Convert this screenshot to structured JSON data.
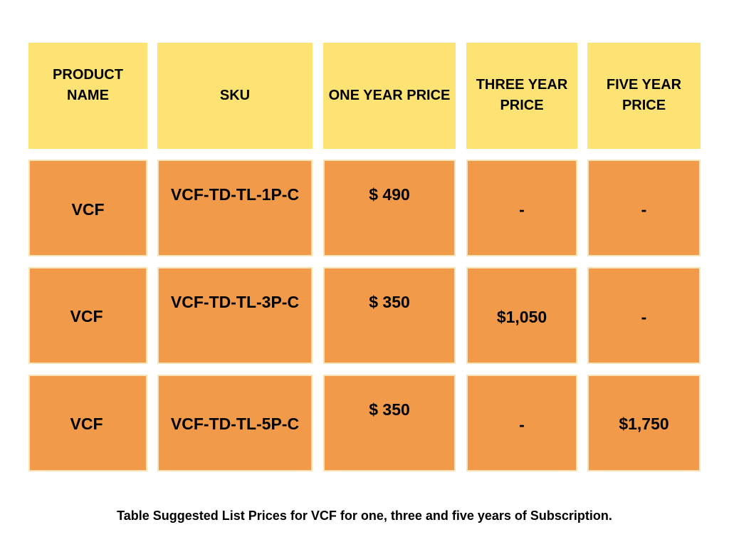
{
  "table": {
    "headers": [
      "PRODUCT NAME",
      "SKU",
      "ONE YEAR PRICE",
      "THREE YEAR PRICE",
      "FIVE YEAR PRICE"
    ],
    "rows": [
      [
        "VCF",
        "VCF-TD-TL-1P-C",
        "$ 490",
        "-",
        "-"
      ],
      [
        "VCF",
        "VCF-TD-TL-3P-C",
        "$ 350",
        "$1,050",
        "-"
      ],
      [
        "VCF",
        "VCF-TD-TL-5P-C",
        "$ 350",
        "-",
        "$1,750"
      ]
    ]
  },
  "caption": "Table Suggested List Prices for VCF for one, three and five years of Subscription.",
  "colors": {
    "header_bg": "#fde374",
    "cell_bg": "#f09a4a"
  }
}
